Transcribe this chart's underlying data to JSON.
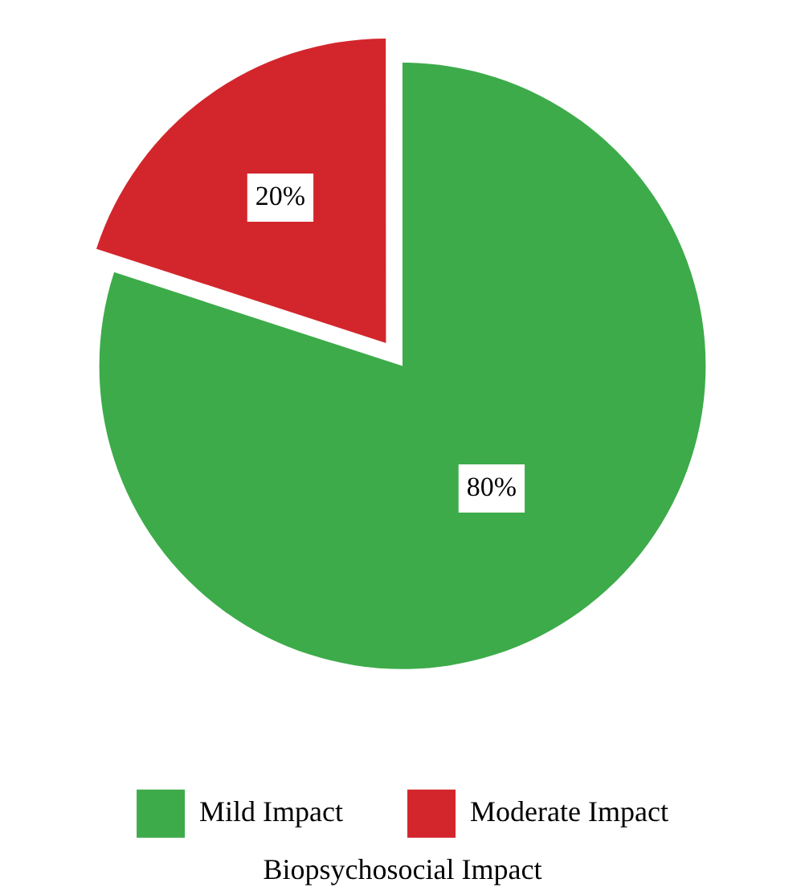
{
  "chart_data": {
    "type": "pie",
    "title": "Biopsychosocial Impact",
    "categories": [
      "Mild Impact",
      "Moderate Impact"
    ],
    "values": [
      80,
      20
    ],
    "colors": [
      "#3dab4a",
      "#d3262c"
    ],
    "value_labels": [
      "80%",
      "20%"
    ],
    "legend": "bottom"
  }
}
